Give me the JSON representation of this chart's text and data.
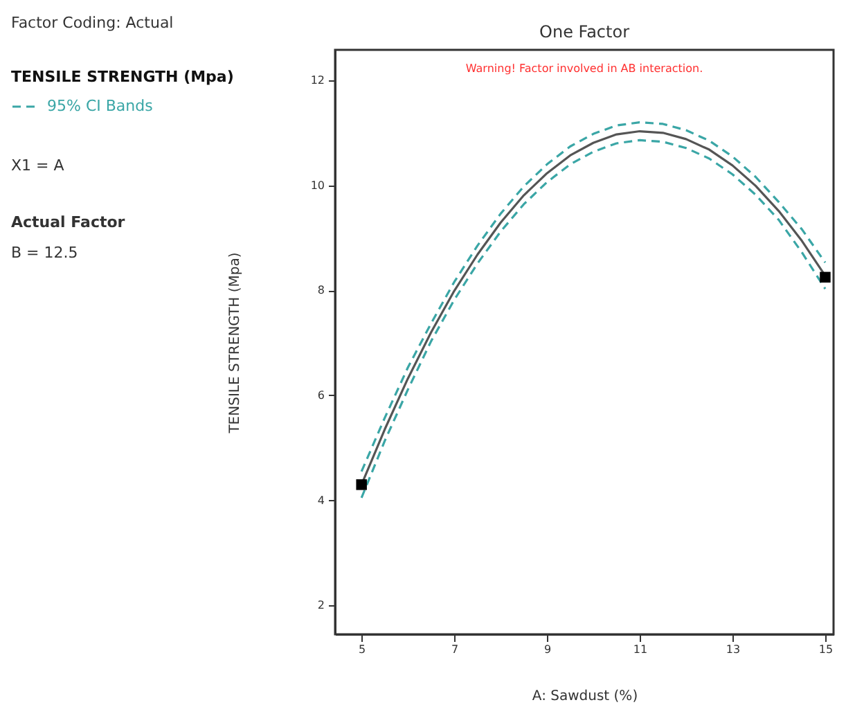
{
  "chart_data": {
    "type": "line",
    "title": "One Factor",
    "xlabel": "A: Sawdust (%)",
    "ylabel": "TENSILE STRENGTH (Mpa)",
    "legend_title": "TENSILE STRENGTH (Mpa)",
    "annotations": [
      "Factor Coding: Actual",
      "X1 = A",
      "Actual Factor",
      "B = 12.5",
      "Warning! Factor involved in AB interaction."
    ],
    "x": [
      5,
      5.5,
      6,
      6.5,
      7,
      7.5,
      8,
      8.5,
      9,
      9.5,
      10,
      10.5,
      11,
      11.5,
      12,
      12.5,
      13,
      13.5,
      14,
      14.5,
      15
    ],
    "series": [
      {
        "color": "#555555",
        "values": [
          4.3,
          5.35,
          6.32,
          7.2,
          7.99,
          8.68,
          9.29,
          9.81,
          10.23,
          10.57,
          10.81,
          10.97,
          11.03,
          11.0,
          10.88,
          10.68,
          10.38,
          9.99,
          9.51,
          8.94,
          8.28
        ],
        "line_style": "solid"
      },
      {
        "name": "95% CI Bands",
        "color": "#3aa6a6",
        "line_style": "dashed",
        "values": [
          4.55,
          5.57,
          6.53,
          7.37,
          8.16,
          8.85,
          9.46,
          9.98,
          10.4,
          10.74,
          10.98,
          11.14,
          11.2,
          11.17,
          11.05,
          10.85,
          10.55,
          10.16,
          9.68,
          9.16,
          8.53
        ]
      },
      {
        "color": "#3aa6a6",
        "line_style": "dashed",
        "values": [
          4.05,
          5.13,
          6.11,
          7.03,
          7.82,
          8.51,
          9.12,
          9.64,
          10.06,
          10.4,
          10.64,
          10.8,
          10.86,
          10.83,
          10.71,
          10.51,
          10.21,
          9.82,
          9.34,
          8.72,
          8.03
        ]
      },
      {
        "type": "scatter",
        "color": "#000000",
        "marker": "square",
        "x": [
          5,
          15
        ],
        "values": [
          4.3,
          8.25
        ]
      }
    ],
    "xlim": [
      4.43,
      15.18
    ],
    "ylim": [
      1.45,
      12.58
    ],
    "xticks": [
      5,
      7,
      9,
      11,
      13,
      15
    ],
    "yticks": [
      2,
      4,
      6,
      8,
      10,
      12
    ],
    "grid": false,
    "legend": "left"
  }
}
